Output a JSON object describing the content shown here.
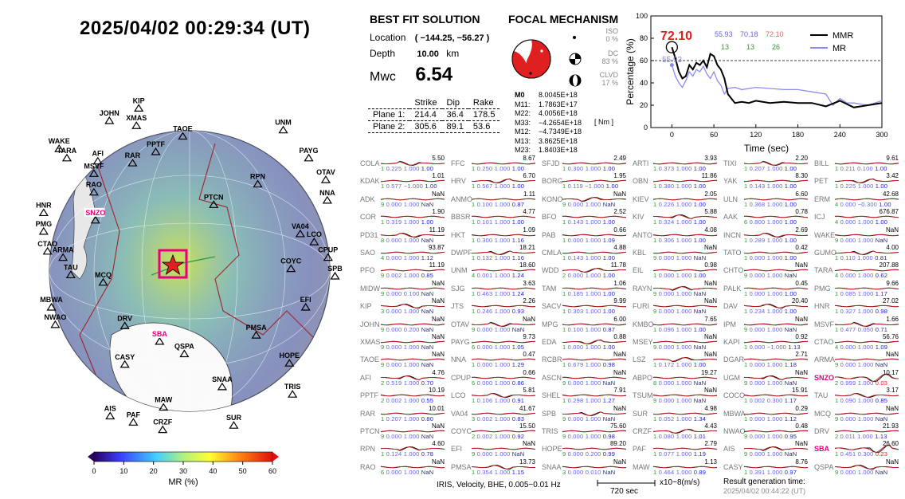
{
  "header": {
    "datetime": "2025/04/02  00:29:34 (UT)"
  },
  "best_fit": {
    "title": "BEST FIT SOLUTION",
    "location_label": "Location",
    "location_value": "( −144.25,  −56.27 )",
    "depth_label": "Depth",
    "depth_value": "10.00",
    "depth_unit": "km",
    "mw_label": "Mwc",
    "mw_value": "6.54",
    "col_strike": "Strike",
    "col_dip": "Dip",
    "col_rake": "Rake",
    "plane1_label": "Plane 1:",
    "plane1": [
      "214.4",
      "36.4",
      "178.5"
    ],
    "plane2_label": "Plane 2:",
    "plane2": [
      "305.6",
      "89.1",
      "53.6"
    ]
  },
  "focal": {
    "title": "FOCAL MECHANISM",
    "iso_label": "ISO",
    "iso_pct": "0 %",
    "dc_label": "DC",
    "dc_pct": "83 %",
    "clvd_label": "CLVD",
    "clvd_pct": "17 %",
    "moments": [
      {
        "k": "M0",
        "v": "8.0045E+18"
      },
      {
        "k": "M11:",
        "v": "1.7863E+17"
      },
      {
        "k": "M22:",
        "v": "4.0056E+18"
      },
      {
        "k": "M33:",
        "v": "−4.2654E+18"
      },
      {
        "k": "M12:",
        "v": "−4.7349E+18"
      },
      {
        "k": "M13:",
        "v": "3.8625E+18"
      },
      {
        "k": "M23:",
        "v": "1.8403E+18"
      }
    ],
    "unit": "[ Nm ]"
  },
  "mr_plot": {
    "ylabel": "Percentage (%)",
    "xlabel": "Time (sec)",
    "peak_label": "72.10",
    "peak_mr": "55.93",
    "legend": [
      {
        "name": "MMR",
        "color": "#000000"
      },
      {
        "name": "MR",
        "color": "#8c8cf0"
      }
    ],
    "stats_row1": [
      "55.93",
      "70.18",
      "72.10"
    ],
    "stats_row2": [
      "13",
      "13",
      "26"
    ]
  },
  "chart_data": {
    "type": "line",
    "xlabel": "Time (sec)",
    "ylabel": "Percentage (%)",
    "xlim": [
      -30,
      300
    ],
    "ylim": [
      0,
      100
    ],
    "xticks": [
      0,
      60,
      120,
      180,
      240,
      300
    ],
    "yticks": [
      0,
      20,
      40,
      60,
      80,
      100
    ],
    "threshold": 60,
    "series": [
      {
        "name": "MMR",
        "color": "#000000",
        "x": [
          0,
          5,
          10,
          15,
          20,
          25,
          30,
          35,
          40,
          45,
          50,
          55,
          60,
          65,
          70,
          75,
          80,
          85,
          90,
          100,
          110,
          120,
          140,
          160,
          180,
          200,
          220,
          240,
          260,
          280,
          300
        ],
        "y": [
          72,
          62,
          50,
          44,
          46,
          56,
          52,
          58,
          56,
          60,
          54,
          66,
          64,
          56,
          52,
          44,
          30,
          26,
          22,
          23,
          22,
          24,
          22,
          23,
          22,
          22,
          19,
          24,
          18,
          20,
          22
        ]
      },
      {
        "name": "MR",
        "color": "#8c8cf0",
        "x": [
          0,
          5,
          10,
          15,
          20,
          25,
          30,
          35,
          40,
          45,
          50,
          55,
          60,
          65,
          70,
          75,
          80,
          90,
          100,
          120,
          140,
          160,
          180,
          200,
          220,
          230,
          240,
          250,
          260,
          280,
          300
        ],
        "y": [
          56,
          46,
          40,
          36,
          42,
          50,
          46,
          52,
          50,
          55,
          48,
          44,
          50,
          42,
          38,
          30,
          35,
          36,
          34,
          36,
          35,
          34,
          34,
          32,
          30,
          20,
          26,
          22,
          22,
          20,
          24
        ]
      }
    ]
  },
  "colorbar": {
    "ticks": [
      "0",
      "10",
      "20",
      "30",
      "40",
      "50",
      "60"
    ],
    "label": "MR (%)"
  },
  "map_labels": [
    "KIP",
    "JOHN",
    "XMAS",
    "TAOE",
    "UNM",
    "WAKE",
    "TARA",
    "AFI",
    "PPTF",
    "RAR",
    "PAYG",
    "OTAV",
    "MSVF",
    "RAO",
    "PTCN",
    "RPN",
    "NNA",
    "HNR",
    "PMG",
    "SNZO",
    "CTAO",
    "ARMA",
    "VA04",
    "LCO",
    "CPUP",
    "TAU",
    "MCQ",
    "COYC",
    "SPB",
    "MBWA",
    "NWAO",
    "EFI",
    "DRV",
    "SBA",
    "PMSA",
    "QSPA",
    "HOPE",
    "CASY",
    "SNAA",
    "TRIS",
    "MAW",
    "AIS",
    "PAF",
    "CRZF",
    "SUR"
  ],
  "stations": [
    [
      [
        "COLA",
        "5.50",
        "1",
        "0.225",
        "1.000",
        "1.00"
      ],
      [
        "KDAK",
        "1.01",
        "1",
        "0.577",
        "−1.000",
        "1.00"
      ],
      [
        "ADK",
        "NaN",
        "9",
        "0.000",
        "1.000",
        "NaN"
      ],
      [
        "COR",
        "1.90",
        "1",
        "0.319",
        "1.000",
        "1.00"
      ],
      [
        "PD31",
        "11.19",
        "8",
        "0.000",
        "1.000",
        "NaN"
      ],
      [
        "SAO",
        "93.87",
        "4",
        "0.000",
        "1.000",
        "1.12"
      ],
      [
        "PFO",
        "11.19",
        "9",
        "0.002",
        "1.000",
        "0.85"
      ],
      [
        "MIDW",
        "NaN",
        "9",
        "0.000",
        "0.100",
        "NaN"
      ],
      [
        "KIP",
        "NaN",
        "3",
        "0.000",
        "1.000",
        "NaN"
      ],
      [
        "JOHN",
        "NaN",
        "9",
        "0.000",
        "0.200",
        "NaN"
      ],
      [
        "XMAS",
        "NaN",
        "9",
        "0.000",
        "1.000",
        "NaN"
      ],
      [
        "TAOE",
        "NaN",
        "9",
        "0.000",
        "1.000",
        "NaN"
      ],
      [
        "AFI",
        "4.76",
        "2",
        "0.519",
        "1.000",
        "0.70"
      ],
      [
        "PPTF",
        "10.19",
        "2",
        "0.002",
        "1.000",
        "0.55"
      ],
      [
        "RAR",
        "10.01",
        "1",
        "0.207",
        "1.000",
        "0.80"
      ],
      [
        "PTCN",
        "NaN",
        "9",
        "0.000",
        "1.000",
        "NaN"
      ],
      [
        "RPN",
        "4.60",
        "1",
        "0.124",
        "1.000",
        "0.78"
      ],
      [
        "RAO",
        "NaN",
        "6",
        "0.000",
        "1.000",
        "NaN"
      ]
    ],
    [
      [
        "FFC",
        "8.67",
        "1",
        "0.250",
        "1.000",
        "1.00"
      ],
      [
        "HRV",
        "6.70",
        "1",
        "0.567",
        "1.000",
        "1.00"
      ],
      [
        "ANMO",
        "1.11",
        "1",
        "0.100",
        "1.000",
        "0.87"
      ],
      [
        "BBSR",
        "4.77",
        "1",
        "0.101",
        "1.000",
        "1.00"
      ],
      [
        "HKT",
        "1.09",
        "1",
        "0.300",
        "1.000",
        "1.16"
      ],
      [
        "DWPF",
        "18.21",
        "1",
        "0.132",
        "1.000",
        "1.16"
      ],
      [
        "UNM",
        "18.60",
        "4",
        "0.001",
        "1.000",
        "1.24"
      ],
      [
        "SJG",
        "3.63",
        "1",
        "0.463",
        "1.000",
        "1.24"
      ],
      [
        "JTS",
        "2.26",
        "1",
        "0.246",
        "1.000",
        "0.93"
      ],
      [
        "OTAV",
        "NaN",
        "9",
        "0.000",
        "1.000",
        "NaN"
      ],
      [
        "PAYG",
        "9.73",
        "6",
        "0.000",
        "1.000",
        "1.05"
      ],
      [
        "NNA",
        "0.47",
        "1",
        "0.000",
        "1.000",
        "1.29"
      ],
      [
        "CPUP",
        "0.66",
        "6",
        "0.000",
        "1.000",
        "0.86"
      ],
      [
        "LCO",
        "5.81",
        "1",
        "0.106",
        "1.000",
        "0.91"
      ],
      [
        "VA04",
        "41.67",
        "3",
        "0.002",
        "1.000",
        "0.83"
      ],
      [
        "COYC",
        "15.50",
        "2",
        "0.002",
        "1.000",
        "0.92"
      ],
      [
        "EFI",
        "NaN",
        "9",
        "0.000",
        "1.000",
        "NaN"
      ],
      [
        "PMSA",
        "13.73",
        "1",
        "0.354",
        "1.000",
        "1.15"
      ]
    ],
    [
      [
        "SFJD",
        "2.49",
        "1",
        "0.300",
        "1.000",
        "1.00"
      ],
      [
        "BORG",
        "1.95",
        "1",
        "0.119",
        "−1.000",
        "1.00"
      ],
      [
        "KONO",
        "NaN",
        "9",
        "0.000",
        "1.000",
        "NaN"
      ],
      [
        "BFO",
        "2.52",
        "1",
        "0.143",
        "1.000",
        "1.00"
      ],
      [
        "PAB",
        "0.66",
        "1",
        "0.000",
        "1.000",
        "1.09"
      ],
      [
        "CMLA",
        "4.88",
        "1",
        "0.143",
        "1.000",
        "1.00"
      ],
      [
        "WDD",
        "11.78",
        "2",
        "0.000",
        "1.000",
        "1.00"
      ],
      [
        "TAM",
        "1.06",
        "1",
        "0.185",
        "1.000",
        "1.00"
      ],
      [
        "SACV",
        "9.99",
        "1",
        "0.303",
        "1.000",
        "1.00"
      ],
      [
        "MPG",
        "6.00",
        "1",
        "0.100",
        "1.000",
        "0.87"
      ],
      [
        "EDA",
        "0.88",
        "1",
        "0.000",
        "1.000",
        "1.00"
      ],
      [
        "RCBR",
        "NaN",
        "1",
        "0.679",
        "1.000",
        "0.98"
      ],
      [
        "ASCN",
        "NaN",
        "9",
        "0.000",
        "1.000",
        "NaN"
      ],
      [
        "SHEL",
        "7.91",
        "1",
        "0.298",
        "1.000",
        "1.27"
      ],
      [
        "SPB",
        "NaN",
        "9",
        "0.000",
        "1.000",
        "NaN"
      ],
      [
        "TRIS",
        "75.60",
        "9",
        "0.000",
        "1.000",
        "0.98"
      ],
      [
        "HOPE",
        "89.20",
        "9",
        "0.000",
        "0.200",
        "0.99"
      ],
      [
        "SNAA",
        "NaN",
        "3",
        "0.000",
        "0.010",
        "NaN"
      ]
    ],
    [
      [
        "ARTI",
        "3.93",
        "1",
        "0.373",
        "1.000",
        "1.00"
      ],
      [
        "OBN",
        "11.86",
        "1",
        "0.380",
        "1.000",
        "1.00"
      ],
      [
        "KIEV",
        "2.05",
        "1",
        "0.226",
        "1.000",
        "1.00"
      ],
      [
        "KIV",
        "5.88",
        "1",
        "0.324",
        "1.000",
        "1.00"
      ],
      [
        "ANTO",
        "4.08",
        "1",
        "0.306",
        "1.000",
        "1.00"
      ],
      [
        "KBL",
        "NaN",
        "9",
        "0.000",
        "1.000",
        "NaN"
      ],
      [
        "EIL",
        "0.98",
        "1",
        "0.000",
        "1.000",
        "1.00"
      ],
      [
        "RAYN",
        "NaN",
        "9",
        "0.000",
        "1.000",
        "NaN"
      ],
      [
        "FURI",
        "NaN",
        "9",
        "0.000",
        "1.000",
        "NaN"
      ],
      [
        "KMBO",
        "7.65",
        "1",
        "0.096",
        "1.000",
        "1.00"
      ],
      [
        "MSEY",
        "NaN",
        "9",
        "0.000",
        "1.000",
        "NaN"
      ],
      [
        "LSZ",
        "NaN",
        "1",
        "0.172",
        "1.000",
        "1.00"
      ],
      [
        "ABPO",
        "19.27",
        "8",
        "0.000",
        "1.000",
        "NaN"
      ],
      [
        "TSUM",
        "NaN",
        "9",
        "0.000",
        "1.000",
        "NaN"
      ],
      [
        "SUR",
        "4.98",
        "1",
        "0.052",
        "1.000",
        "1.34"
      ],
      [
        "CRZF",
        "4.43",
        "1",
        "0.080",
        "1.000",
        "1.01"
      ],
      [
        "PAF",
        "2.79",
        "1",
        "0.077",
        "1.000",
        "1.19"
      ],
      [
        "MAW",
        "1.13",
        "1",
        "0.464",
        "1.000",
        "0.89"
      ]
    ],
    [
      [
        "TIXI",
        "2.20",
        "1",
        "0.207",
        "1.000",
        "1.00"
      ],
      [
        "YAK",
        "8.30",
        "1",
        "0.143",
        "1.000",
        "1.00"
      ],
      [
        "ULN",
        "6.60",
        "1",
        "0.368",
        "1.000",
        "1.00"
      ],
      [
        "AAK",
        "0.78",
        "6",
        "0.800",
        "1.000",
        "1.00"
      ],
      [
        "INCN",
        "2.69",
        "1",
        "0.289",
        "1.000",
        "1.00"
      ],
      [
        "TATO",
        "0.42",
        "1",
        "0.000",
        "1.000",
        "1.00"
      ],
      [
        "CHTO",
        "NaN",
        "9",
        "0.000",
        "1.000",
        "NaN"
      ],
      [
        "PALK",
        "0.45",
        "1",
        "0.000",
        "1.000",
        "1.00"
      ],
      [
        "DAV",
        "20.40",
        "1",
        "0.234",
        "1.000",
        "1.00"
      ],
      [
        "IPM",
        "NaN",
        "9",
        "0.000",
        "1.000",
        "NaN"
      ],
      [
        "KAPI",
        "0.92",
        "1",
        "0.000",
        "−1.000",
        "1.13"
      ],
      [
        "DGAR",
        "2.71",
        "1",
        "0.000",
        "1.000",
        "1.18"
      ],
      [
        "UGM",
        "NaN",
        "9",
        "0.000",
        "1.000",
        "NaN"
      ],
      [
        "COCO",
        "15.91",
        "1",
        "0.002",
        "0.300",
        "1.17"
      ],
      [
        "MBWA",
        "0.29",
        "1",
        "0.000",
        "1.000",
        "1.12"
      ],
      [
        "NWAO",
        "0.48",
        "9",
        "0.000",
        "1.000",
        "0.95"
      ],
      [
        "AIS",
        "NaN",
        "9",
        "0.000",
        "1.000",
        "NaN"
      ],
      [
        "CASY",
        "8.76",
        "1",
        "0.391",
        "1.000",
        "0.97"
      ]
    ],
    [
      [
        "BILL",
        "9.61",
        "1",
        "0.211",
        "0.100",
        "1.00"
      ],
      [
        "PET",
        "3.42",
        "1",
        "0.225",
        "1.000",
        "1.00"
      ],
      [
        "ERM",
        "42.68",
        "4",
        "0.000",
        "−0.300",
        "1.00"
      ],
      [
        "ICJ",
        "676.87",
        "4",
        "0.000",
        "1.000",
        "1.00"
      ],
      [
        "WAKE",
        "NaN",
        "9",
        "0.000",
        "1.000",
        "NaN"
      ],
      [
        "GUMO",
        "4.00",
        "1",
        "0.110",
        "1.000",
        "0.81"
      ],
      [
        "TARA",
        "207.88",
        "4",
        "0.000",
        "1.000",
        "0.62"
      ],
      [
        "PMG",
        "9.66",
        "1",
        "0.085",
        "1.000",
        "1.17"
      ],
      [
        "HNR",
        "27.02",
        "1",
        "0.327",
        "1.000",
        "0.98"
      ],
      [
        "MSVF",
        "1.66",
        "1",
        "0.477",
        "0.050",
        "0.71"
      ],
      [
        "CTAO",
        "56.76",
        "4",
        "0.000",
        "1.000",
        "1.09"
      ],
      [
        "ARMA",
        "NaN",
        "9",
        "0.000",
        "1.000",
        "NaN"
      ],
      [
        "SNZO",
        "10.17",
        "2",
        "0.999",
        "1.000",
        "0.03"
      ],
      [
        "TAU",
        "3.17",
        "1",
        "0.090",
        "1.000",
        "0.85"
      ],
      [
        "MCQ",
        "NaN",
        "9",
        "0.000",
        "1.000",
        "NaN"
      ],
      [
        "DRV",
        "21.93",
        "2",
        "0.011",
        "1.000",
        "1.13"
      ],
      [
        "SBA",
        "26.60",
        "1",
        "0.451",
        "0.300",
        "0.23"
      ],
      [
        "QSPA",
        "NaN",
        "9",
        "0.000",
        "1.000",
        "NaN"
      ]
    ]
  ],
  "red_stations": [
    "SNZO",
    "SBA"
  ],
  "footer": {
    "source": "IRIS, Velocity,   BHE, 0.005−0.01 Hz",
    "scale_label": "720 sec",
    "unit_label": "x10−8(m/s)",
    "generation_label": "Result generation time:",
    "generation_time": "2025/04/02 00:44:22 (UT)"
  }
}
